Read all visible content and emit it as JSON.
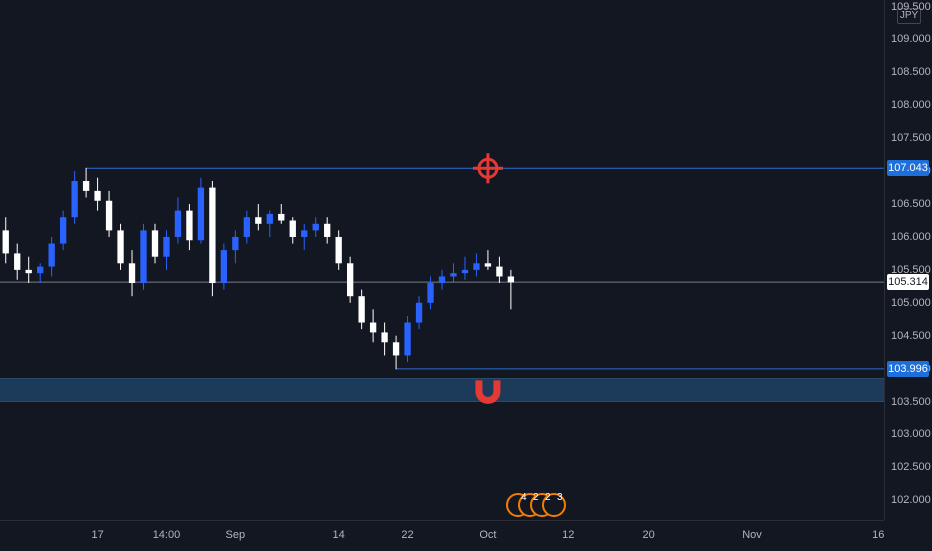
{
  "chart_data": {
    "type": "candlestick",
    "currency": "JPY",
    "y_range": [
      101.7,
      109.6
    ],
    "price_ticks": [
      "109.500",
      "109.000",
      "108.500",
      "108.000",
      "107.500",
      "107.000",
      "106.500",
      "106.000",
      "105.500",
      "105.000",
      "104.500",
      "104.000",
      "103.500",
      "103.000",
      "102.500",
      "102.000"
    ],
    "time_ticks": [
      {
        "label": "17",
        "index": 8
      },
      {
        "label": "14:00",
        "index": 14
      },
      {
        "label": "Sep",
        "index": 20
      },
      {
        "label": "14",
        "index": 29
      },
      {
        "label": "22",
        "index": 35
      },
      {
        "label": "Oct",
        "index": 42
      },
      {
        "label": "12",
        "index": 49
      },
      {
        "label": "20",
        "index": 56
      },
      {
        "label": "Nov",
        "index": 65
      },
      {
        "label": "16",
        "index": 76
      }
    ],
    "candles_count": 77,
    "ohlc": [
      [
        106.1,
        106.3,
        105.6,
        105.75
      ],
      [
        105.75,
        105.9,
        105.35,
        105.5
      ],
      [
        105.5,
        105.7,
        105.3,
        105.45
      ],
      [
        105.45,
        105.6,
        105.3,
        105.55
      ],
      [
        105.55,
        106.0,
        105.4,
        105.9
      ],
      [
        105.9,
        106.4,
        105.8,
        106.3
      ],
      [
        106.3,
        107.0,
        106.2,
        106.85
      ],
      [
        106.85,
        107.05,
        106.6,
        106.7
      ],
      [
        106.7,
        106.9,
        106.4,
        106.55
      ],
      [
        106.55,
        106.7,
        106.0,
        106.1
      ],
      [
        106.1,
        106.2,
        105.5,
        105.6
      ],
      [
        105.6,
        105.8,
        105.1,
        105.3
      ],
      [
        105.3,
        106.2,
        105.2,
        106.1
      ],
      [
        106.1,
        106.2,
        105.6,
        105.7
      ],
      [
        105.7,
        106.1,
        105.5,
        106.0
      ],
      [
        106.0,
        106.6,
        105.9,
        106.4
      ],
      [
        106.4,
        106.5,
        105.8,
        105.95
      ],
      [
        105.95,
        106.9,
        105.9,
        106.75
      ],
      [
        106.75,
        106.85,
        105.1,
        105.3
      ],
      [
        105.3,
        105.9,
        105.2,
        105.8
      ],
      [
        105.8,
        106.1,
        105.6,
        106.0
      ],
      [
        106.0,
        106.4,
        105.9,
        106.3
      ],
      [
        106.3,
        106.5,
        106.1,
        106.2
      ],
      [
        106.2,
        106.4,
        106.0,
        106.35
      ],
      [
        106.35,
        106.5,
        106.2,
        106.25
      ],
      [
        106.25,
        106.3,
        105.9,
        106.0
      ],
      [
        106.0,
        106.2,
        105.8,
        106.1
      ],
      [
        106.1,
        106.3,
        106.0,
        106.2
      ],
      [
        106.2,
        106.3,
        105.9,
        106.0
      ],
      [
        106.0,
        106.1,
        105.5,
        105.6
      ],
      [
        105.6,
        105.7,
        105.0,
        105.1
      ],
      [
        105.1,
        105.2,
        104.6,
        104.7
      ],
      [
        104.7,
        104.9,
        104.4,
        104.55
      ],
      [
        104.55,
        104.7,
        104.2,
        104.4
      ],
      [
        104.4,
        104.5,
        103.99,
        104.2
      ],
      [
        104.2,
        104.8,
        104.1,
        104.7
      ],
      [
        104.7,
        105.1,
        104.6,
        105.0
      ],
      [
        105.0,
        105.4,
        104.9,
        105.3
      ],
      [
        105.3,
        105.5,
        105.2,
        105.4
      ],
      [
        105.4,
        105.6,
        105.3,
        105.45
      ],
      [
        105.45,
        105.7,
        105.35,
        105.5
      ],
      [
        105.5,
        105.75,
        105.4,
        105.6
      ],
      [
        105.6,
        105.8,
        105.5,
        105.55
      ],
      [
        105.55,
        105.7,
        105.3,
        105.4
      ],
      [
        105.4,
        105.5,
        104.9,
        105.31
      ],
      [
        105.31,
        105.31,
        105.31,
        105.31
      ],
      [
        105.31,
        105.31,
        105.31,
        105.31
      ],
      [
        105.31,
        105.31,
        105.31,
        105.31
      ],
      [
        105.31,
        105.31,
        105.31,
        105.31
      ],
      [
        105.31,
        105.31,
        105.31,
        105.31
      ],
      [
        105.31,
        105.31,
        105.31,
        105.31
      ],
      [
        105.31,
        105.31,
        105.31,
        105.31
      ],
      [
        105.31,
        105.31,
        105.31,
        105.31
      ],
      [
        105.31,
        105.31,
        105.31,
        105.31
      ],
      [
        105.31,
        105.31,
        105.31,
        105.31
      ],
      [
        105.31,
        105.31,
        105.31,
        105.31
      ],
      [
        105.31,
        105.31,
        105.31,
        105.31
      ],
      [
        105.31,
        105.31,
        105.31,
        105.31
      ],
      [
        105.31,
        105.31,
        105.31,
        105.31
      ],
      [
        105.31,
        105.31,
        105.31,
        105.31
      ],
      [
        105.31,
        105.31,
        105.31,
        105.31
      ],
      [
        105.31,
        105.31,
        105.31,
        105.31
      ],
      [
        105.31,
        105.31,
        105.31,
        105.31
      ],
      [
        105.31,
        105.31,
        105.31,
        105.31
      ],
      [
        105.31,
        105.31,
        105.31,
        105.31
      ],
      [
        105.31,
        105.31,
        105.31,
        105.31
      ],
      [
        105.31,
        105.31,
        105.31,
        105.31
      ],
      [
        105.31,
        105.31,
        105.31,
        105.31
      ],
      [
        105.31,
        105.31,
        105.31,
        105.31
      ],
      [
        105.31,
        105.31,
        105.31,
        105.31
      ],
      [
        105.31,
        105.31,
        105.31,
        105.31
      ],
      [
        105.31,
        105.31,
        105.31,
        105.31
      ],
      [
        105.31,
        105.31,
        105.31,
        105.31
      ],
      [
        105.31,
        105.31,
        105.31,
        105.31
      ],
      [
        105.31,
        105.31,
        105.31,
        105.31
      ],
      [
        105.31,
        105.31,
        105.31,
        105.31
      ],
      [
        105.31,
        105.31,
        105.31,
        105.31
      ]
    ],
    "visible_candles": 45,
    "resistance_level": {
      "price": 107.043,
      "label": "107.043",
      "start_index": 7
    },
    "support_level": {
      "price": 103.996,
      "label": "103.996",
      "start_index": 34
    },
    "current_price": {
      "price": 105.314,
      "label": "105.314"
    },
    "support_zone": [
      103.5,
      103.85
    ],
    "colors": {
      "up": "#2962ff",
      "down": "#ffffff",
      "level_line": "#2a6fd6",
      "zone": "#1c3a5a",
      "marker": "#e53935",
      "price_line": "#787b86"
    },
    "markers": [
      {
        "icon": "crosshair-target-icon",
        "price": 107.043,
        "index": 42
      },
      {
        "icon": "magnet-icon",
        "price": 103.7,
        "index": 42
      }
    ],
    "events": {
      "labels": [
        "4",
        "2",
        "2",
        "3"
      ]
    }
  }
}
